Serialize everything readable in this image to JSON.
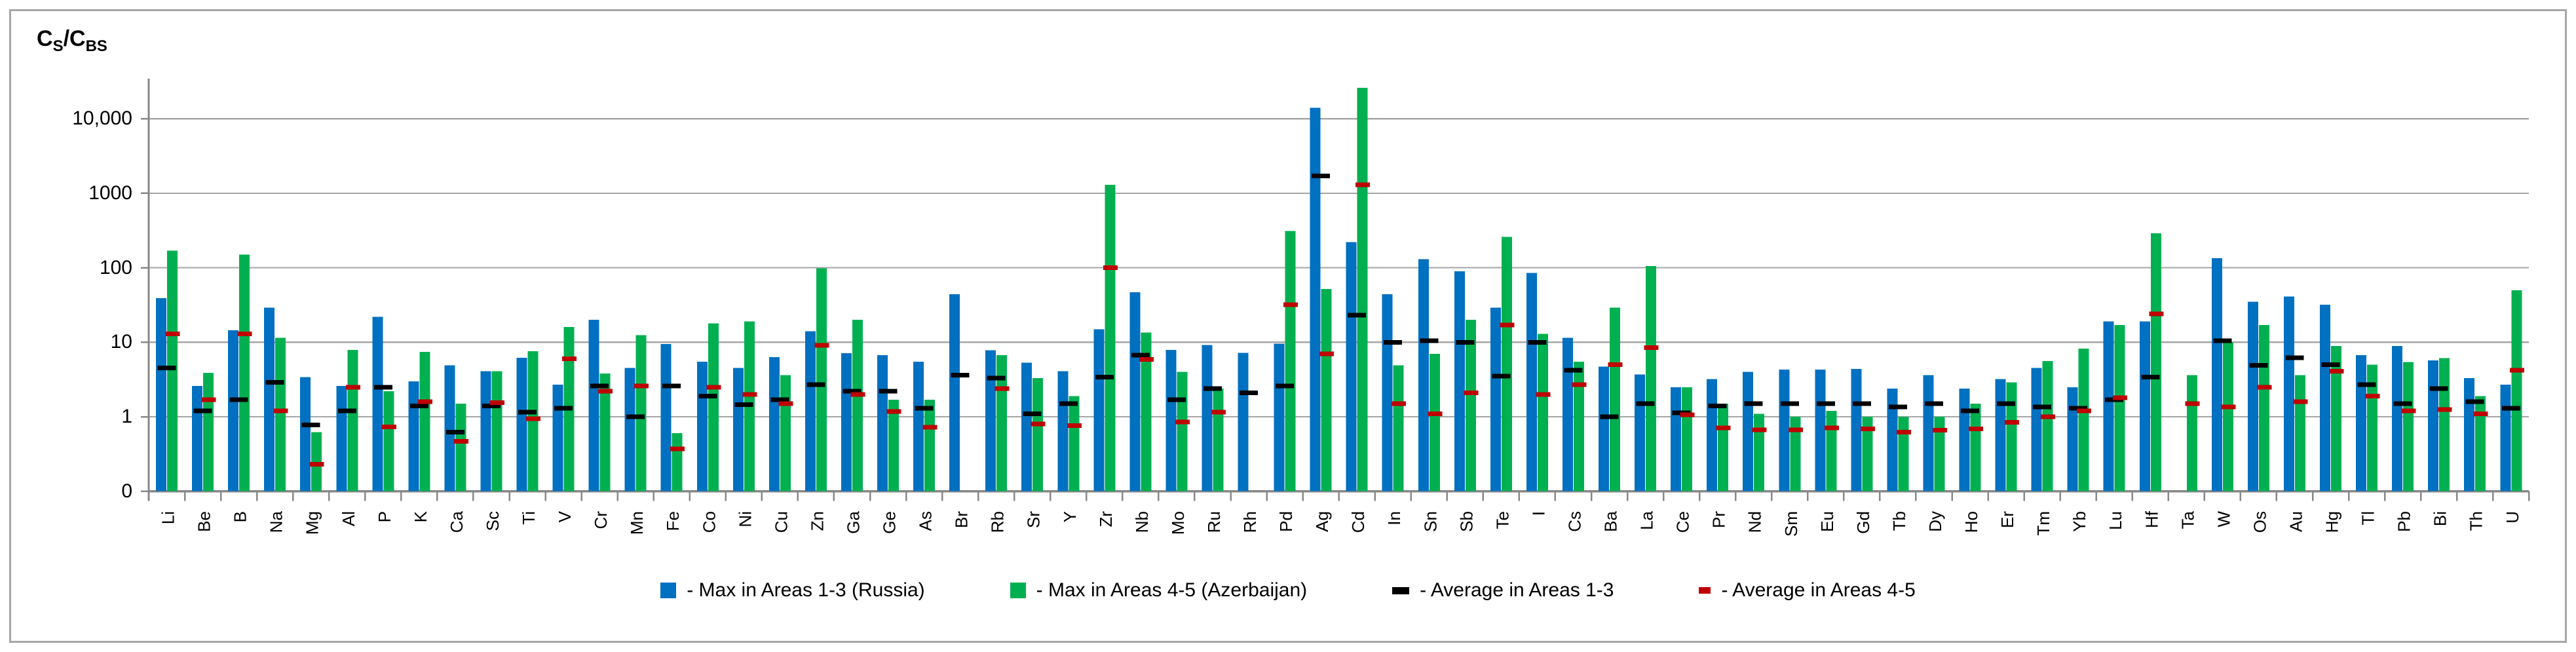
{
  "frame": {
    "border_color": "#a6a6a6",
    "background": "#ffffff"
  },
  "y_axis": {
    "title": {
      "c1": "C",
      "s1": "S",
      "c2": "/C",
      "s2": "BS"
    },
    "tick_labels": [
      "10,000",
      "1000",
      "100",
      "10",
      "1",
      "0"
    ]
  },
  "legend": {
    "items": [
      {
        "label": "- Max in Areas 1-3 (Russia)",
        "color": "#0070C0",
        "marker": "square"
      },
      {
        "label": "- Max in Areas 4-5 (Azerbaijan)",
        "color": "#00B050",
        "marker": "square"
      },
      {
        "label": "- Average in Areas 1-3",
        "color": "#000000",
        "marker": "dash"
      },
      {
        "label": "- Average in Areas 4-5",
        "color": "#C00000",
        "marker": "dash-small"
      }
    ]
  },
  "chart_data": {
    "type": "bar",
    "title": "",
    "ylabel": "Cs/Cbs (subscripted as C_S/C_BS)",
    "xlabel": "",
    "y_scale": "log",
    "ylim": [
      0.1,
      30000
    ],
    "gridlines_at": [
      10000,
      1000,
      100,
      10,
      1,
      0.1
    ],
    "gridline_labels": [
      "10,000",
      "1000",
      "100",
      "10",
      "1",
      "0"
    ],
    "grid": "horizontal-on",
    "legend_position": "bottom",
    "bar_colors": {
      "max_1_3": "#0070C0",
      "max_4_5": "#00B050",
      "avg_1_3": "#000000",
      "avg_4_5": "#C00000"
    },
    "categories": [
      "Li",
      "Be",
      "B",
      "Na",
      "Mg",
      "Al",
      "P",
      "K",
      "Ca",
      "Sc",
      "Ti",
      "V",
      "Cr",
      "Mn",
      "Fe",
      "Co",
      "Ni",
      "Cu",
      "Zn",
      "Ga",
      "Ge",
      "As",
      "Br",
      "Rb",
      "Sr",
      "Y",
      "Zr",
      "Nb",
      "Mo",
      "Ru",
      "Rh",
      "Pd",
      "Ag",
      "Cd",
      "In",
      "Sn",
      "Sb",
      "Te",
      "I",
      "Cs",
      "Ba",
      "La",
      "Ce",
      "Pr",
      "Nd",
      "Sm",
      "Eu",
      "Gd",
      "Tb",
      "Dy",
      "Ho",
      "Er",
      "Tm",
      "Yb",
      "Lu",
      "Hf",
      "Ta",
      "W",
      "Os",
      "Au",
      "Hg",
      "Tl",
      "Pb",
      "Bi",
      "Th",
      "U"
    ],
    "series": [
      {
        "name": "Max in Areas 1-3 (Russia)",
        "draw": "bar",
        "color": "#0070C0",
        "values": [
          39,
          2.6,
          14.5,
          29,
          3.4,
          2.6,
          22,
          3.0,
          4.9,
          4.1,
          6.2,
          2.7,
          20,
          4.5,
          9.5,
          5.5,
          4.5,
          6.3,
          14,
          7.1,
          6.7,
          5.5,
          44,
          7.8,
          5.3,
          4.1,
          15,
          47,
          7.9,
          9.2,
          7.2,
          9.6,
          14000,
          220,
          44,
          130,
          90,
          29,
          85,
          11.5,
          4.7,
          3.7,
          2.5,
          3.2,
          4.0,
          4.3,
          4.3,
          4.4,
          2.4,
          3.6,
          2.4,
          3.2,
          4.5,
          2.5,
          19,
          19,
          null,
          135,
          35,
          41,
          32,
          6.7,
          8.9,
          5.7,
          3.3,
          2.7
        ]
      },
      {
        "name": "Max in Areas 4-5 (Azerbaijan)",
        "draw": "bar",
        "color": "#00B050",
        "values": [
          170,
          3.9,
          150,
          11.5,
          0.62,
          7.9,
          2.2,
          7.4,
          1.5,
          4.1,
          7.6,
          16,
          3.8,
          12.5,
          0.6,
          18,
          19,
          3.6,
          98,
          20,
          1.7,
          1.7,
          null,
          6.7,
          3.3,
          1.9,
          1300,
          13.5,
          4.0,
          2.4,
          null,
          310,
          52,
          26000,
          4.9,
          7.0,
          20,
          260,
          13,
          5.5,
          29,
          105,
          2.5,
          1.5,
          1.1,
          1.0,
          1.2,
          1.0,
          1.0,
          1.0,
          1.5,
          2.9,
          5.6,
          8.2,
          17,
          290,
          3.6,
          10,
          17,
          3.6,
          8.9,
          5.0,
          5.4,
          6.1,
          1.9,
          50
        ]
      },
      {
        "name": "Average in Areas 1-3",
        "draw": "dash",
        "color": "#000000",
        "values": [
          4.5,
          1.2,
          1.7,
          2.9,
          0.78,
          1.2,
          2.5,
          1.4,
          0.62,
          1.4,
          1.15,
          1.3,
          2.6,
          1.0,
          2.6,
          1.9,
          1.45,
          1.7,
          2.7,
          2.2,
          2.2,
          1.3,
          3.6,
          3.3,
          1.1,
          1.5,
          3.4,
          6.7,
          1.7,
          2.4,
          2.1,
          2.6,
          1700,
          23,
          10,
          10.5,
          10,
          3.5,
          10,
          4.2,
          1.0,
          1.5,
          1.13,
          1.4,
          1.5,
          1.5,
          1.5,
          1.5,
          1.35,
          1.5,
          1.2,
          1.5,
          1.35,
          1.3,
          1.7,
          3.4,
          null,
          10.5,
          4.9,
          6.2,
          5.0,
          2.7,
          1.5,
          2.4,
          1.6,
          1.3
        ]
      },
      {
        "name": "Average in Areas 4-5",
        "draw": "dash",
        "color": "#C00000",
        "values": [
          13,
          1.7,
          13,
          1.2,
          0.23,
          2.5,
          0.73,
          1.6,
          0.47,
          1.55,
          0.94,
          6.0,
          2.2,
          2.6,
          0.37,
          2.5,
          2.0,
          1.5,
          9.1,
          2.0,
          1.18,
          0.72,
          null,
          2.4,
          0.8,
          0.76,
          100,
          5.9,
          0.85,
          1.15,
          null,
          32,
          7.0,
          1300,
          1.5,
          1.1,
          2.1,
          17,
          2.0,
          2.7,
          5.0,
          8.5,
          1.06,
          0.71,
          0.67,
          0.67,
          0.71,
          0.69,
          0.62,
          0.66,
          0.69,
          0.84,
          1.0,
          1.2,
          1.8,
          24,
          1.5,
          1.35,
          2.5,
          1.6,
          4.1,
          1.9,
          1.2,
          1.25,
          1.1,
          4.2
        ]
      }
    ]
  }
}
